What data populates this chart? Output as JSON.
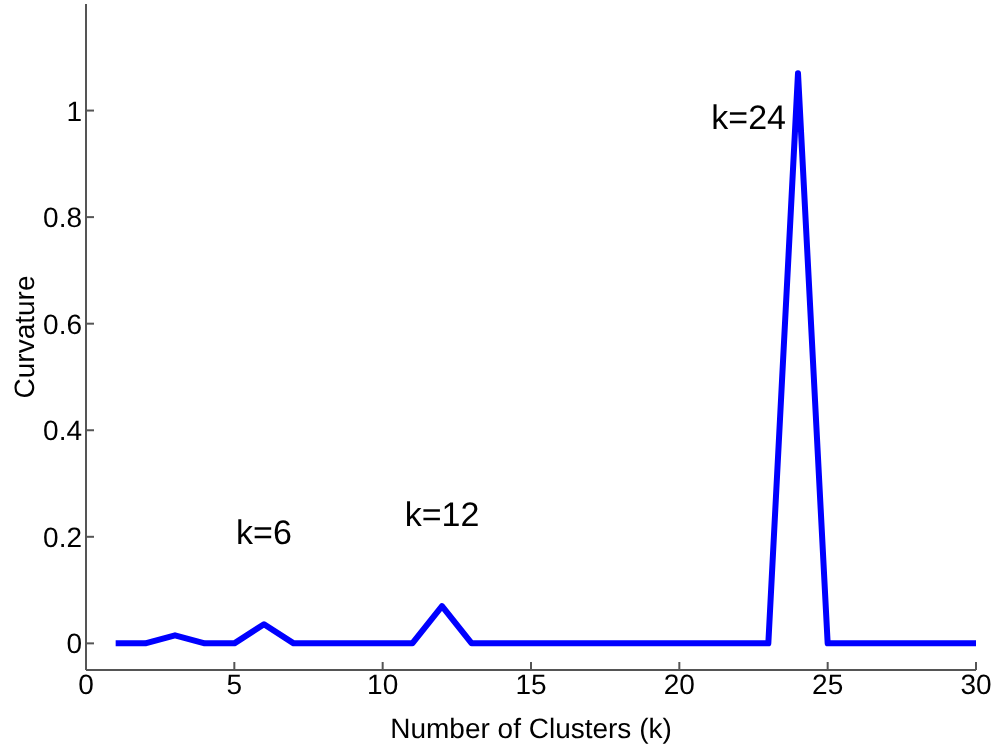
{
  "chart_data": {
    "type": "line",
    "xlabel": "Number of Clusters (k)",
    "ylabel": "Curvature",
    "x": [
      1,
      2,
      3,
      4,
      5,
      6,
      7,
      8,
      9,
      10,
      11,
      12,
      13,
      14,
      15,
      16,
      17,
      18,
      19,
      20,
      21,
      22,
      23,
      24,
      25,
      26,
      27,
      28,
      29,
      30
    ],
    "series": [
      {
        "color": "#0000ff",
        "values": [
          0,
          0,
          0.015,
          0,
          0,
          0.036,
          0,
          0,
          0,
          0,
          0,
          0.07,
          0,
          0,
          0,
          0,
          0,
          0,
          0,
          0,
          0,
          0,
          0,
          1.07,
          0,
          0,
          0,
          0,
          0,
          0
        ]
      }
    ],
    "xlim": [
      0,
      30
    ],
    "xticks": [
      0,
      5,
      10,
      15,
      20,
      25,
      30
    ],
    "ylim": [
      -0.05,
      1.2
    ],
    "yticks": [
      0,
      0.2,
      0.4,
      0.6,
      0.8,
      1
    ],
    "grid": false,
    "legend": false,
    "marker": "none",
    "line_style": "solid",
    "annotations": [
      {
        "text": "k=6",
        "x": 6,
        "y": 0.036
      },
      {
        "text": "k=12",
        "x": 12,
        "y": 0.07
      },
      {
        "text": "k=24",
        "x": 24,
        "y": 1.07
      }
    ]
  }
}
